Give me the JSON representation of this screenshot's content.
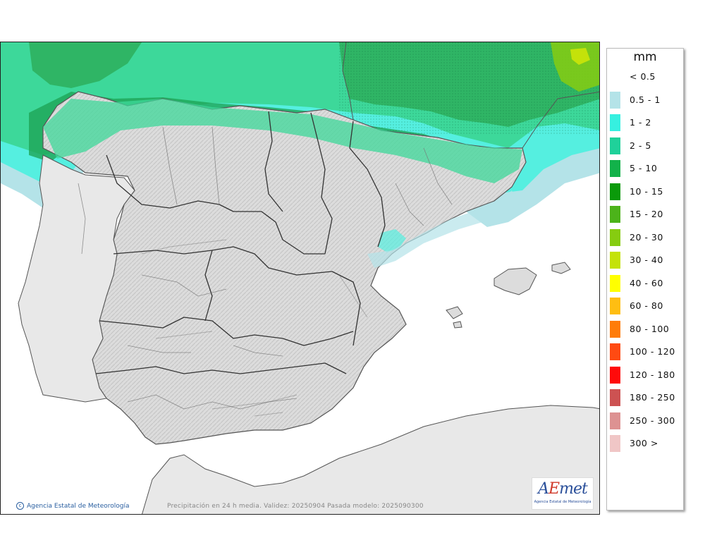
{
  "map": {
    "caption": "Precipitación en 24 h media. Validez: 20250904 Pasada modelo: 2025090300",
    "copyright": "Agencia Estatal de Meteorología",
    "logo": {
      "word": "AEmet",
      "subtitle": "Agencia Estatal de Meteorología"
    }
  },
  "legend": {
    "unit": "mm",
    "items": [
      {
        "label": "< 0.5",
        "color": "#ffffff"
      },
      {
        "label": "0.5 - 1",
        "color": "#b4e3e8"
      },
      {
        "label": "1 - 2",
        "color": "#36f0e0"
      },
      {
        "label": "2 - 5",
        "color": "#1fd19a"
      },
      {
        "label": "5 - 10",
        "color": "#12b24a"
      },
      {
        "label": "10 - 15",
        "color": "#0a9a0a"
      },
      {
        "label": "15 - 20",
        "color": "#4cb31a"
      },
      {
        "label": "20 - 30",
        "color": "#86cc10"
      },
      {
        "label": "30 - 40",
        "color": "#c4e20a"
      },
      {
        "label": "40 - 60",
        "color": "#ffff00"
      },
      {
        "label": "60 - 80",
        "color": "#ffbe12"
      },
      {
        "label": "80 - 100",
        "color": "#ff7c0a"
      },
      {
        "label": "100 - 120",
        "color": "#ff4a12"
      },
      {
        "label": "120 - 180",
        "color": "#ff0a0a"
      },
      {
        "label": "180 - 250",
        "color": "#cd5252"
      },
      {
        "label": "250 - 300",
        "color": "#dd9292"
      },
      {
        "label": "300 >",
        "color": "#f0c6c6"
      }
    ]
  }
}
